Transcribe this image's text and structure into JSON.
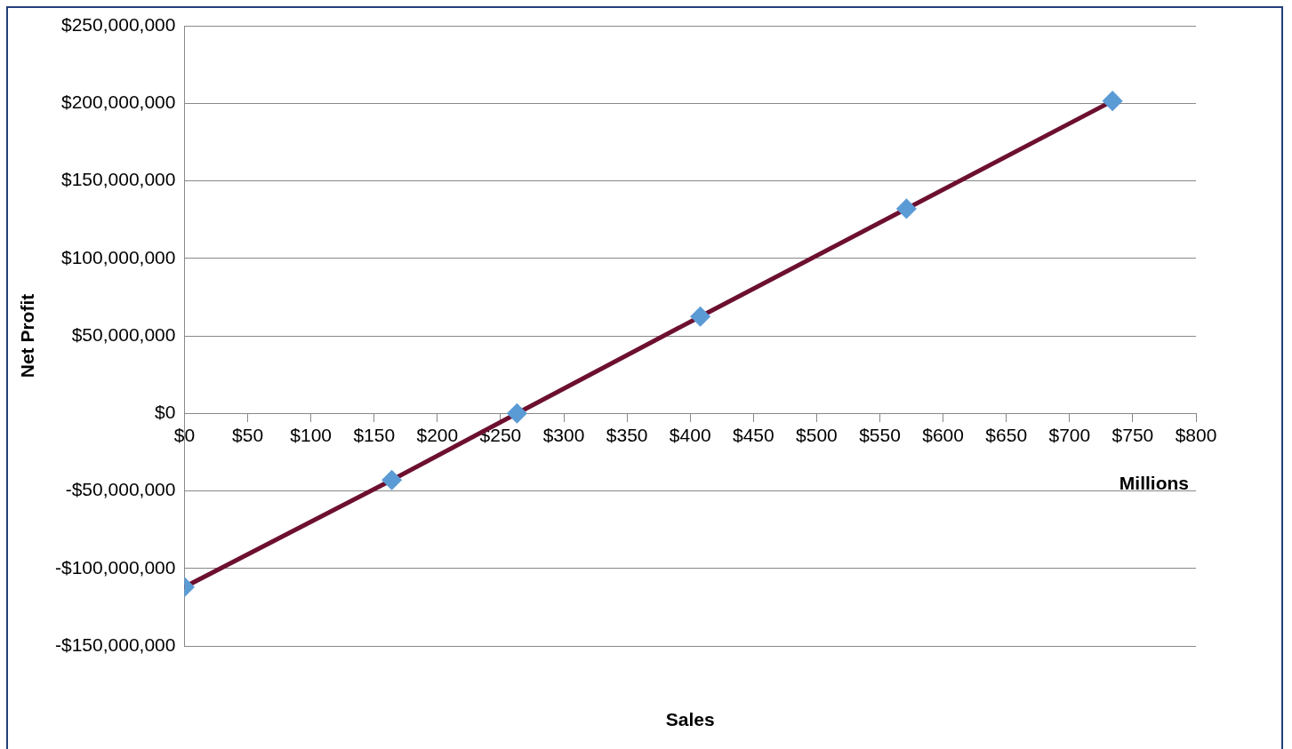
{
  "chart_data": {
    "type": "line",
    "xlabel": "Sales",
    "ylabel": "Net Profit",
    "annotations": [
      "Millions"
    ],
    "x": [
      0,
      164,
      263,
      408,
      571,
      734
    ],
    "series": [
      {
        "color": "#6d1030",
        "colors": [
          "#5b9bd5",
          "#5b9bd5",
          "#5b9bd5",
          "#5b9bd5",
          "#5b9bd5",
          "#5b9bd5"
        ],
        "values": [
          -112000000,
          -43000000,
          0,
          62500000,
          132000000,
          201500000
        ]
      }
    ],
    "xlim": [
      0,
      800
    ],
    "xticks": [
      {
        "value": 0,
        "label": "$0"
      },
      {
        "value": 50,
        "label": "$50"
      },
      {
        "value": 100,
        "label": "$100"
      },
      {
        "value": 150,
        "label": "$150"
      },
      {
        "value": 200,
        "label": "$200"
      },
      {
        "value": 250,
        "label": "$250"
      },
      {
        "value": 300,
        "label": "$300"
      },
      {
        "value": 350,
        "label": "$350"
      },
      {
        "value": 400,
        "label": "$400"
      },
      {
        "value": 450,
        "label": "$450"
      },
      {
        "value": 500,
        "label": "$500"
      },
      {
        "value": 550,
        "label": "$550"
      },
      {
        "value": 600,
        "label": "$600"
      },
      {
        "value": 650,
        "label": "$650"
      },
      {
        "value": 700,
        "label": "$700"
      },
      {
        "value": 750,
        "label": "$750"
      },
      {
        "value": 800,
        "label": "$800"
      }
    ],
    "ylim": [
      -150000000,
      250000000
    ],
    "yticks": [
      {
        "value": -150000000,
        "label": "-$150,000,000"
      },
      {
        "value": -100000000,
        "label": "-$100,000,000"
      },
      {
        "value": -50000000,
        "label": "-$50,000,000"
      },
      {
        "value": 0,
        "label": "$0"
      },
      {
        "value": 50000000,
        "label": "$50,000,000"
      },
      {
        "value": 100000000,
        "label": "$100,000,000"
      },
      {
        "value": 150000000,
        "label": "$150,000,000"
      },
      {
        "value": 200000000,
        "label": "$200,000,000"
      },
      {
        "value": 250000000,
        "label": "$250,000,000"
      }
    ],
    "grid": "y",
    "legend": false,
    "marker": "diamond",
    "line_style": "solid"
  }
}
